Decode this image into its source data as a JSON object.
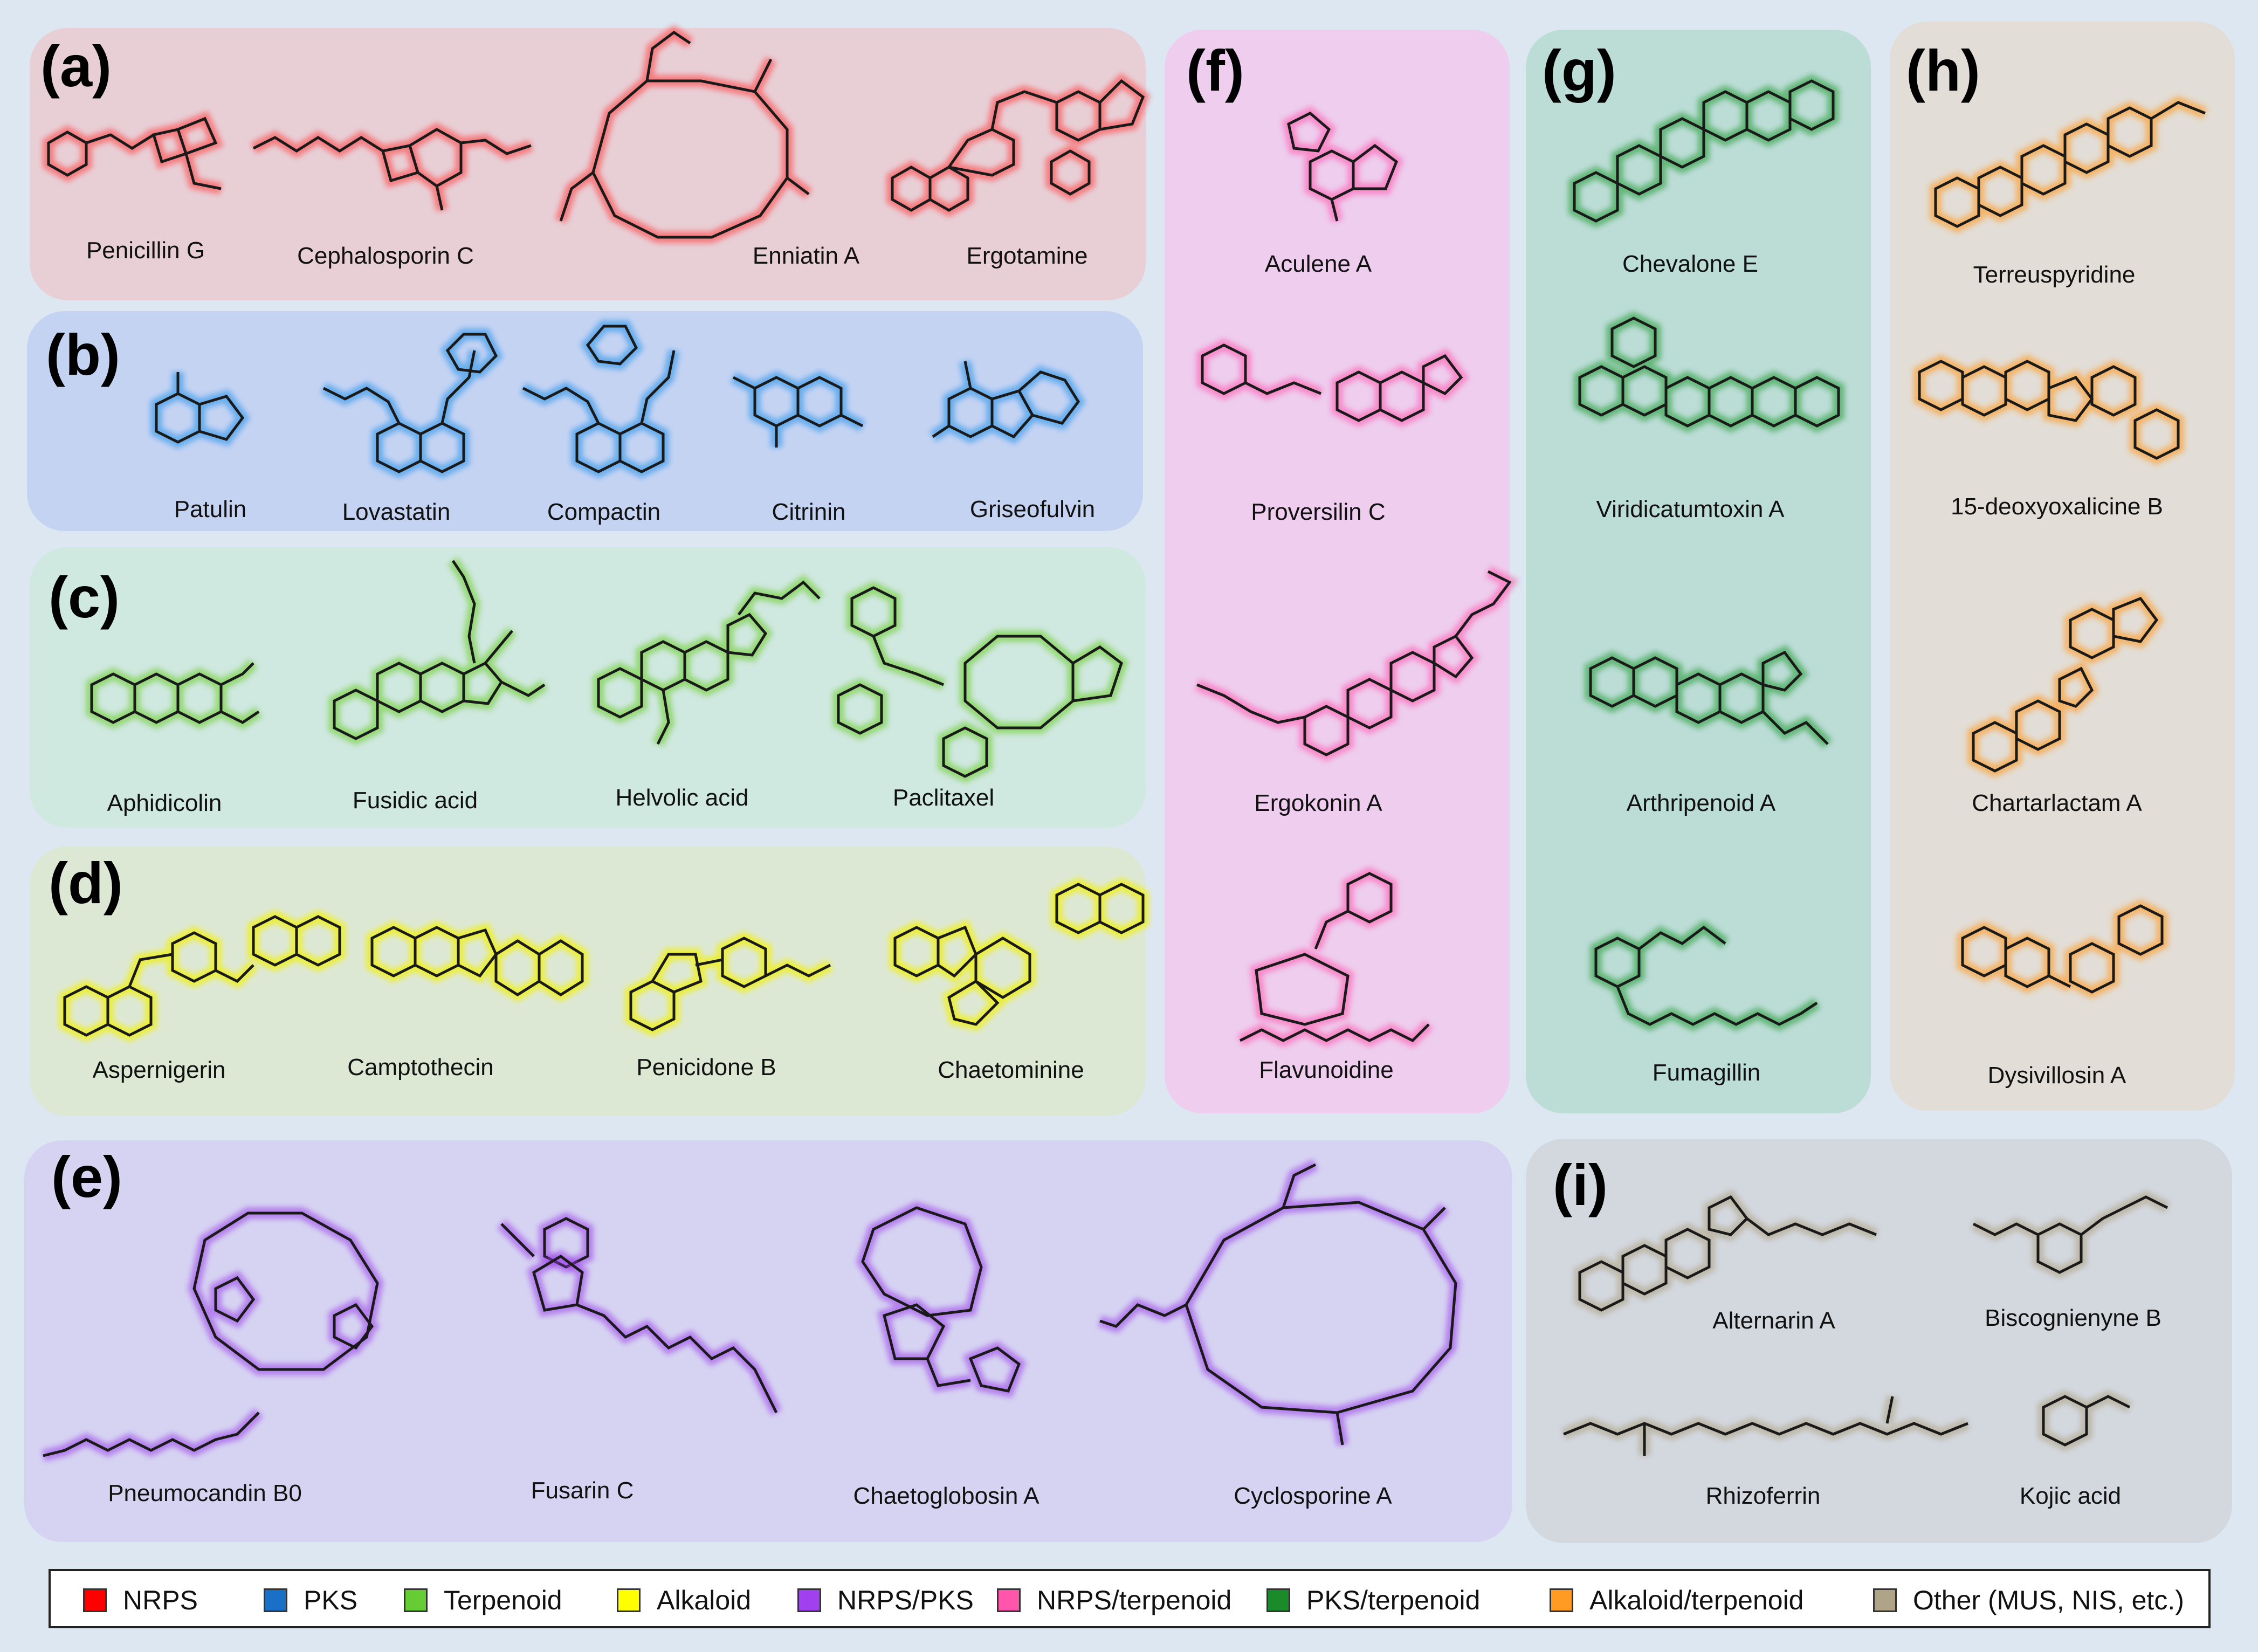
{
  "panels": [
    {
      "letter": "(a)",
      "color": "#ff3b3b",
      "bg": "#e8cfd6",
      "compounds": [
        "Penicillin G",
        "Cephalosporin C",
        "Enniatin A",
        "Ergotamine"
      ]
    },
    {
      "letter": "(b)",
      "color": "#1e90e8",
      "bg": "#c5d3f3",
      "compounds": [
        "Patulin",
        "Lovastatin",
        "Compactin",
        "Citrinin",
        "Griseofulvin"
      ]
    },
    {
      "letter": "(c)",
      "color": "#66cc22",
      "bg": "#cfe8e0",
      "compounds": [
        "Aphidicolin",
        "Fusidic acid",
        "Helvolic acid",
        "Paclitaxel"
      ]
    },
    {
      "letter": "(d)",
      "color": "#f2f200",
      "bg": "#dde8d4",
      "compounds": [
        "Aspernigerin",
        "Camptothecin",
        "Penicidone B",
        "Chaetominine"
      ]
    },
    {
      "letter": "(e)",
      "color": "#9a3ee8",
      "bg": "#d6d3f2",
      "compounds": [
        "Pneumocandin B0",
        "Fusarin C",
        "Chaetoglobosin A",
        "Cyclosporine A"
      ]
    },
    {
      "letter": "(f)",
      "color": "#ff55aa",
      "bg": "#eecdef",
      "compounds": [
        "Aculene A",
        "Proversilin C",
        "Ergokonin A",
        "Flavunoidine"
      ]
    },
    {
      "letter": "(g)",
      "color": "#1a9a2e",
      "bg": "#bcdcd6",
      "compounds": [
        "Chevalone E",
        "Viridicatumtoxin A",
        "Arthripenoid A",
        "Fumagillin"
      ]
    },
    {
      "letter": "(h)",
      "color": "#ff9a22",
      "bg": "#e2ddd6",
      "compounds": [
        "Terreuspyridine",
        "15-deoxyoxalicine B",
        "Chartarlactam A",
        "Dysivillosin A"
      ]
    },
    {
      "letter": "(i)",
      "color": "#b0a488",
      "bg": "#d3d8df",
      "compounds": [
        "Alternarin A",
        "Biscognienyne B",
        "Rhizoferrin",
        "Kojic acid"
      ]
    }
  ],
  "legend": [
    {
      "label": "NRPS",
      "color": "#ff0000"
    },
    {
      "label": "PKS",
      "color": "#1a6fc7"
    },
    {
      "label": "Terpenoid",
      "color": "#66cc33"
    },
    {
      "label": "Alkaloid",
      "color": "#ffff00"
    },
    {
      "label": "NRPS/PKS",
      "color": "#a040ee"
    },
    {
      "label": "NRPS/terpenoid",
      "color": "#ff55aa"
    },
    {
      "label": "PKS/terpenoid",
      "color": "#1a8a2a"
    },
    {
      "label": "Alkaloid/terpenoid",
      "color": "#ff9a22"
    },
    {
      "label": "Other (MUS, NIS, etc.)",
      "color": "#b0a488"
    }
  ]
}
